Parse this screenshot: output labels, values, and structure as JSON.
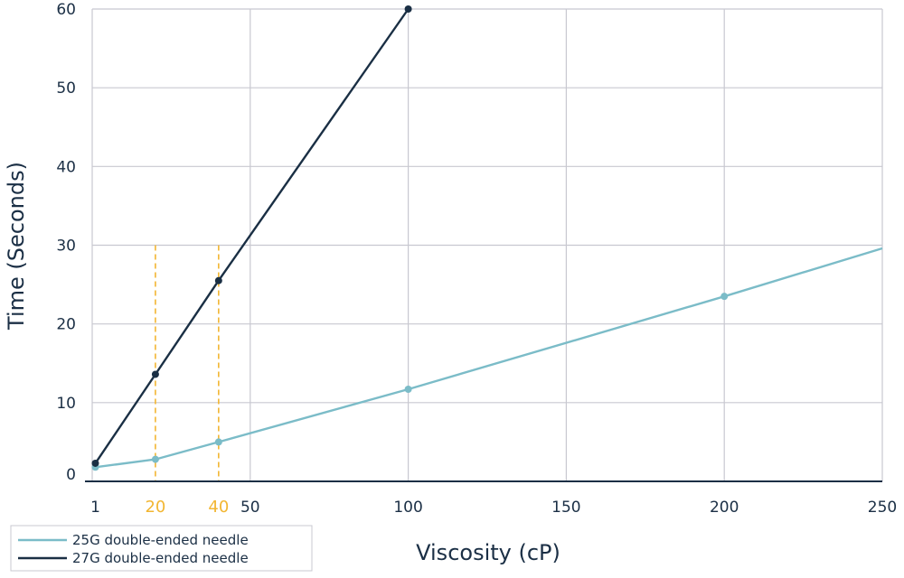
{
  "chart_data": {
    "type": "line",
    "title": "",
    "xlabel": "Viscosity (cP)",
    "ylabel": "Time (Seconds)",
    "xlim": [
      0,
      250
    ],
    "ylim": [
      0,
      60
    ],
    "x_ticks": [
      1,
      50,
      100,
      150,
      200,
      250
    ],
    "highlight_x_ticks": [
      20,
      40
    ],
    "y_ticks": [
      0,
      10,
      20,
      30,
      40,
      50,
      60
    ],
    "grid": true,
    "legend_position": "bottom-left",
    "reference_lines": [
      {
        "x": 20,
        "y_top": 30,
        "color": "#f2b632",
        "style": "dashed"
      },
      {
        "x": 40,
        "y_top": 30,
        "color": "#f2b632",
        "style": "dashed"
      }
    ],
    "colors": {
      "grid": "#c8c8d0",
      "axis": "#1b2f45",
      "highlight": "#f2b632"
    },
    "series": [
      {
        "name": "25G double-ended needle",
        "color": "#7bbcc8",
        "x": [
          1,
          20,
          40,
          100,
          200,
          250
        ],
        "y": [
          1.8,
          2.8,
          5.0,
          11.7,
          23.5,
          29.6
        ],
        "markers": [
          true,
          true,
          true,
          true,
          true,
          false
        ]
      },
      {
        "name": "27G double-ended needle",
        "color": "#1a2f44",
        "x": [
          1,
          20,
          40,
          100
        ],
        "y": [
          2.3,
          13.6,
          25.5,
          60.0
        ],
        "markers": [
          true,
          true,
          true,
          true
        ]
      }
    ]
  }
}
